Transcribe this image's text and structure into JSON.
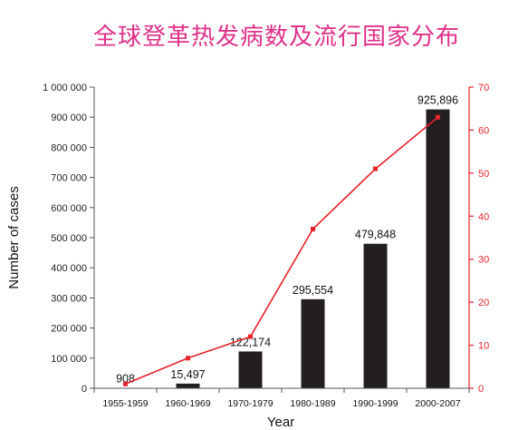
{
  "title": "全球登革热发病数及流行国家分布",
  "chart_data": {
    "type": "bar",
    "title": "全球登革热发病数及流行国家分布",
    "xlabel": "Year",
    "ylabel": "Number of cases",
    "categories": [
      "1955-1959",
      "1960-1969",
      "1970-1979",
      "1980-1989",
      "1990-1999",
      "2000-2007"
    ],
    "series": [
      {
        "kind": "bar",
        "axis": "left",
        "color": "#231f20",
        "values": [
          908,
          15497,
          122174,
          295554,
          479848,
          925896
        ],
        "labels": [
          "908",
          "15,497",
          "122,174",
          "295,554",
          "479,848",
          "925,896"
        ]
      },
      {
        "kind": "line",
        "axis": "right",
        "color": "#e8232a",
        "values": [
          1,
          7,
          12,
          37,
          51,
          63
        ]
      }
    ],
    "ylim_left": [
      0,
      1000000
    ],
    "yticks_left": [
      "0",
      "100 000",
      "200 000",
      "300 000",
      "400 000",
      "500 000",
      "600 000",
      "700 000",
      "800 000",
      "900 000",
      "1 000 000"
    ],
    "ylim_right": [
      0,
      70
    ],
    "yticks_right": [
      "0",
      "10",
      "20",
      "30",
      "40",
      "50",
      "60",
      "70"
    ],
    "grid": false,
    "colors": {
      "left_axis": "#555555",
      "right_axis": "#e8232a",
      "title": "#e0308a"
    }
  }
}
